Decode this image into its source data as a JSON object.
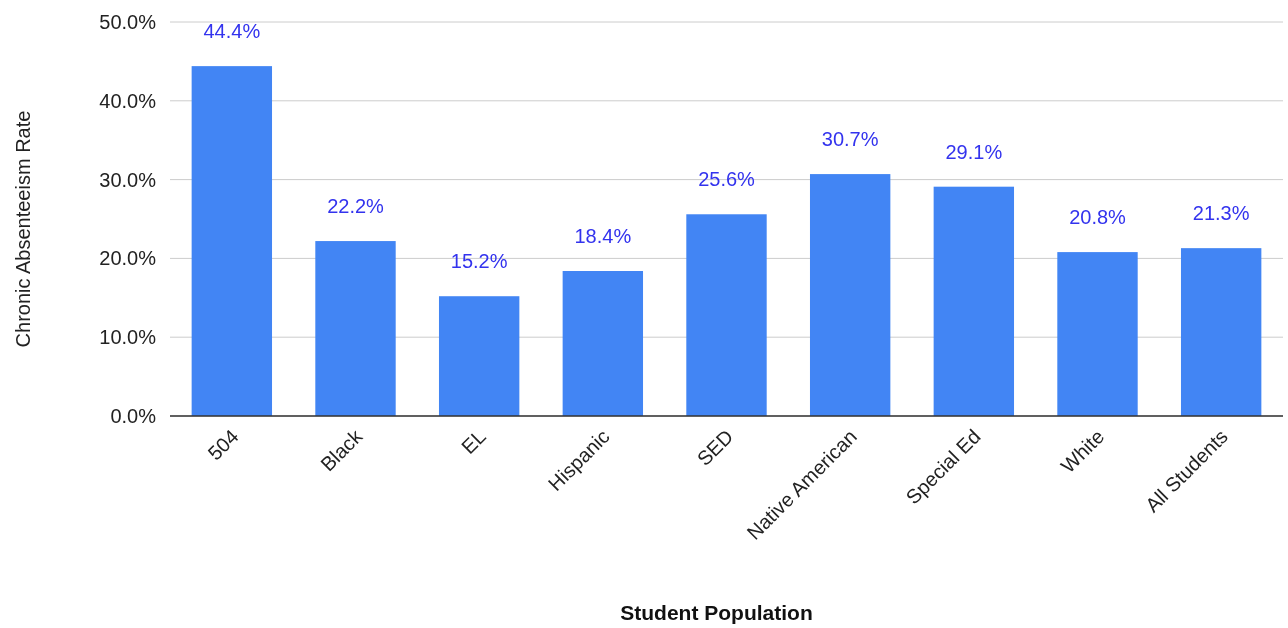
{
  "chart_data": {
    "type": "bar",
    "xlabel": "Student Population",
    "ylabel": "Chronic Absenteeism Rate",
    "categories": [
      "504",
      "Black",
      "EL",
      "Hispanic",
      "SED",
      "Native American",
      "Special Ed",
      "White",
      "All Students"
    ],
    "values": [
      44.4,
      22.2,
      15.2,
      18.4,
      25.6,
      30.7,
      29.1,
      20.8,
      21.3
    ],
    "value_labels": [
      "44.4%",
      "22.2%",
      "15.2%",
      "18.4%",
      "25.6%",
      "30.7%",
      "29.1%",
      "20.8%",
      "21.3%"
    ],
    "color": "#4285f4",
    "ylim": [
      0,
      50
    ],
    "yticks": [
      {
        "value": 0,
        "label": "0.0%"
      },
      {
        "value": 10,
        "label": "10.0%"
      },
      {
        "value": 20,
        "label": "20.0%"
      },
      {
        "value": 30,
        "label": "30.0%"
      },
      {
        "value": 40,
        "label": "40.0%"
      },
      {
        "value": 50,
        "label": "50.0%"
      }
    ],
    "grid": "y"
  }
}
